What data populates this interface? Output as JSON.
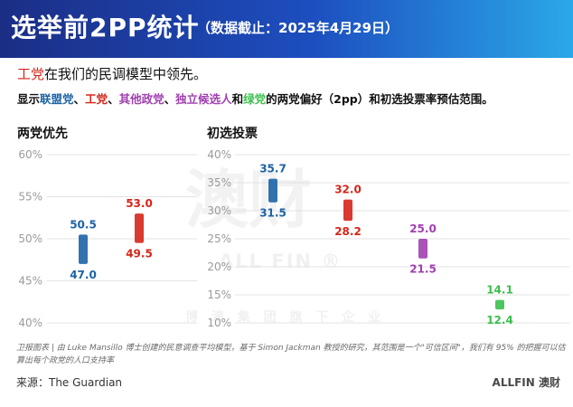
{
  "header": {
    "title": "选举前2PP统计",
    "subtitle": "（数据截止：2025年4月29日）"
  },
  "lead": {
    "line1_party": "工党",
    "line1_rest": "在我们的民调模型中领先。",
    "line2_pre": "显示",
    "line2_p1": "联盟党",
    "sep1": "、",
    "line2_p2": "工党",
    "sep2": "、",
    "line2_p3": "其他政党",
    "sep3": "、",
    "line2_p4": "独立候选人",
    "line2_and": "和",
    "line2_p5": "绿党",
    "line2_post": "的两党偏好（2pp）和初选投票率预估范围。"
  },
  "chart_titles": {
    "left": "两党优先",
    "right": "初选投票"
  },
  "chart_data": [
    {
      "type": "range",
      "title": "两党优先",
      "ylim": [
        40,
        60
      ],
      "yticks": [
        "60%",
        "55%",
        "50%",
        "45%",
        "40%"
      ],
      "grid": true,
      "series": [
        {
          "high": 50.5,
          "low": 47.0,
          "color": "#1c63a6"
        },
        {
          "high": 53.0,
          "low": 49.5,
          "color": "#d62518"
        }
      ]
    },
    {
      "type": "range",
      "title": "初选投票",
      "ylim": [
        10,
        40
      ],
      "yticks": [
        "40%",
        "35%",
        "30%",
        "25%",
        "20%",
        "15%",
        "10%"
      ],
      "grid": true,
      "series": [
        {
          "high": 35.7,
          "low": 31.5,
          "color": "#1c63a6"
        },
        {
          "high": 32.0,
          "low": 28.2,
          "color": "#d62518"
        },
        {
          "high": 25.0,
          "low": 21.5,
          "color": "#a03fb0"
        },
        {
          "high": 14.1,
          "low": 12.4,
          "color": "#3cbf4e"
        }
      ]
    }
  ],
  "watermark": {
    "main": "澳财",
    "en": "ALL FIN ®",
    "cn": "博 満 集 团 旗 下 企 业"
  },
  "footnote": "卫报图表 | 由 Luke Mansillo 博士创建的民意调查平均模型，基于 Simon Jackman 教授的研究，其范围是一个\"可信区间\"，我们有 95% 的把握可以估算出每个政党的人口支持率",
  "source": "来源：The Guardian",
  "logo": "ALLFIN 澳财"
}
